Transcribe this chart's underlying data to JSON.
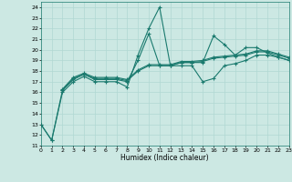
{
  "xlabel": "Humidex (Indice chaleur)",
  "xlim": [
    0,
    23
  ],
  "ylim": [
    11,
    24.5
  ],
  "yticks": [
    11,
    12,
    13,
    14,
    15,
    16,
    17,
    18,
    19,
    20,
    21,
    22,
    23,
    24
  ],
  "xticks": [
    0,
    1,
    2,
    3,
    4,
    5,
    6,
    7,
    8,
    9,
    10,
    11,
    12,
    13,
    14,
    15,
    16,
    17,
    18,
    19,
    20,
    21,
    22,
    23
  ],
  "bg_color": "#cce8e3",
  "line_color": "#1a7a6e",
  "grid_color": "#b0d8d2",
  "lines": [
    {
      "x": [
        0,
        1,
        2,
        3,
        4,
        5,
        6,
        7,
        8,
        9,
        10,
        11,
        12,
        13,
        14,
        15,
        16,
        17,
        18,
        19,
        20,
        21,
        22,
        23
      ],
      "y": [
        13,
        11.5,
        16,
        17,
        17.5,
        17,
        17,
        17,
        16.5,
        19.5,
        22,
        24,
        18.5,
        18.5,
        18.5,
        17,
        17.3,
        18.5,
        18.7,
        19,
        19.5,
        19.5,
        19.3,
        19
      ]
    },
    {
      "x": [
        0,
        1,
        2,
        3,
        4,
        5,
        6,
        7,
        8,
        9,
        10,
        11,
        12,
        13,
        14,
        15,
        16,
        17,
        18,
        19,
        20,
        21,
        22,
        23
      ],
      "y": [
        13,
        11.5,
        16.2,
        17.2,
        17.7,
        17.2,
        17.2,
        17.2,
        17.0,
        19.0,
        21.5,
        18.5,
        18.5,
        18.8,
        18.8,
        18.8,
        21.3,
        20.5,
        19.5,
        20.2,
        20.2,
        19.7,
        19.3,
        19.0
      ]
    },
    {
      "x": [
        2,
        3,
        4,
        5,
        6,
        7,
        8,
        9,
        10,
        11,
        12,
        13,
        14,
        15,
        16,
        17,
        18,
        19,
        20,
        21,
        22,
        23
      ],
      "y": [
        16.2,
        17.3,
        17.7,
        17.3,
        17.3,
        17.3,
        17.1,
        18.0,
        18.5,
        18.5,
        18.5,
        18.8,
        18.8,
        18.9,
        19.2,
        19.3,
        19.4,
        19.5,
        19.8,
        19.8,
        19.5,
        19.2
      ]
    },
    {
      "x": [
        2,
        3,
        4,
        5,
        6,
        7,
        8,
        9,
        10,
        11,
        12,
        13,
        14,
        15,
        16,
        17,
        18,
        19,
        20,
        21,
        22,
        23
      ],
      "y": [
        16.3,
        17.4,
        17.8,
        17.4,
        17.4,
        17.4,
        17.2,
        18.1,
        18.6,
        18.6,
        18.6,
        18.9,
        18.9,
        19.0,
        19.3,
        19.4,
        19.5,
        19.6,
        19.9,
        19.9,
        19.6,
        19.3
      ]
    }
  ]
}
